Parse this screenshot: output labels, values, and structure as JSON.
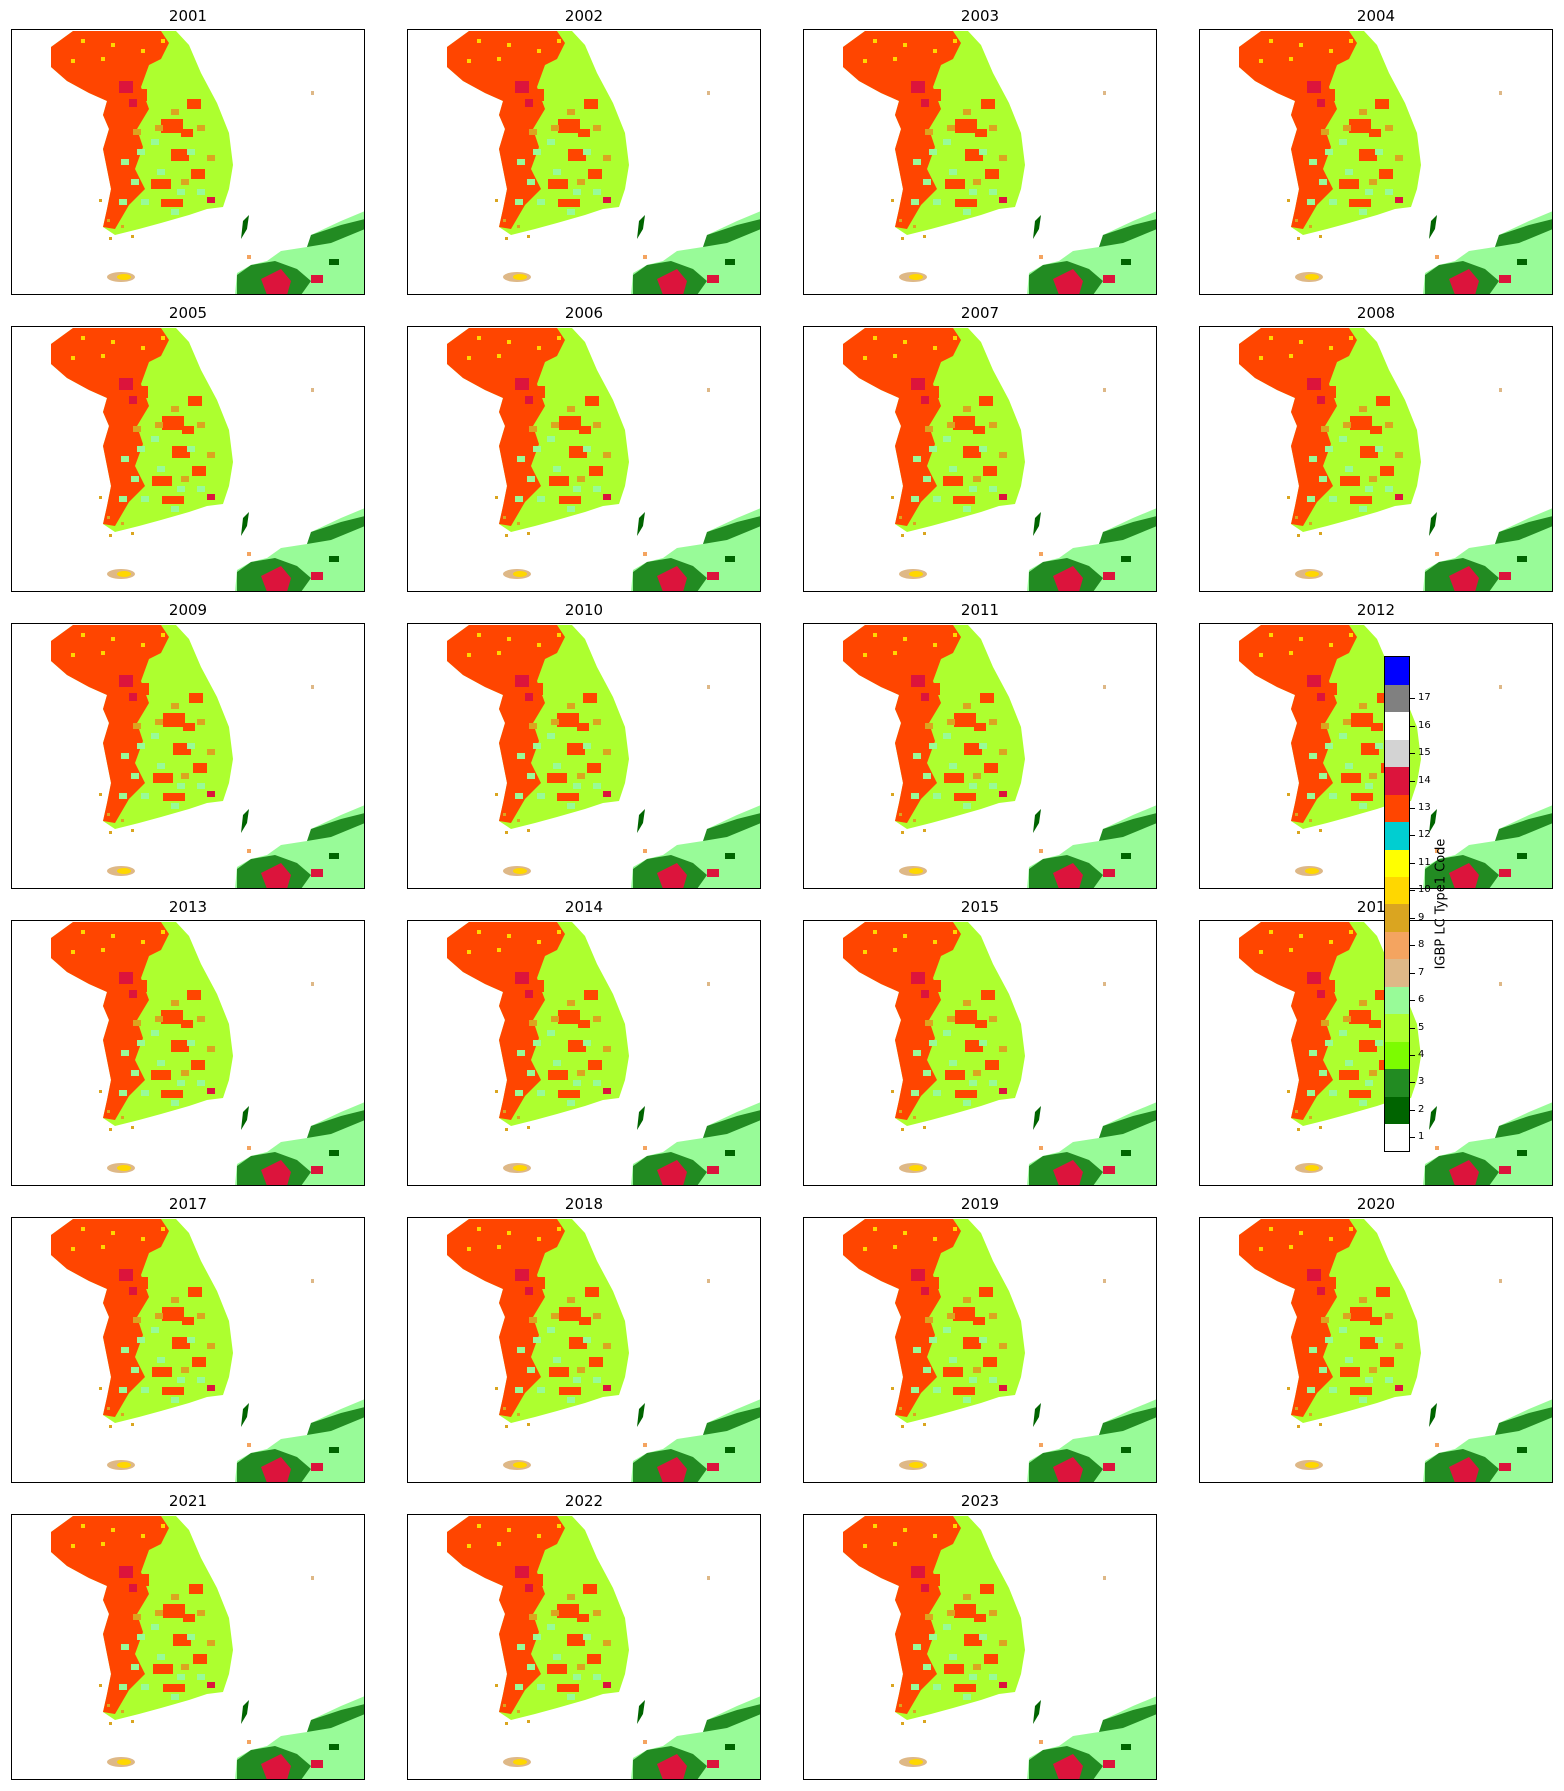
{
  "figure": {
    "panels": [
      {
        "year": "2001"
      },
      {
        "year": "2002"
      },
      {
        "year": "2003"
      },
      {
        "year": "2004"
      },
      {
        "year": "2005"
      },
      {
        "year": "2006"
      },
      {
        "year": "2007"
      },
      {
        "year": "2008"
      },
      {
        "year": "2009"
      },
      {
        "year": "2010"
      },
      {
        "year": "2011"
      },
      {
        "year": "2012"
      },
      {
        "year": "2013"
      },
      {
        "year": "2014"
      },
      {
        "year": "2015"
      },
      {
        "year": "2016"
      },
      {
        "year": "2017"
      },
      {
        "year": "2018"
      },
      {
        "year": "2019"
      },
      {
        "year": "2020"
      },
      {
        "year": "2021"
      },
      {
        "year": "2022"
      },
      {
        "year": "2023"
      }
    ],
    "colorbar": {
      "label": "IGBP LC Type1 Code",
      "classes": [
        {
          "code": "1",
          "color": "#ffffff"
        },
        {
          "code": "2",
          "color": "#006400"
        },
        {
          "code": "3",
          "color": "#228b22"
        },
        {
          "code": "4",
          "color": "#7cfc00"
        },
        {
          "code": "5",
          "color": "#adff2f"
        },
        {
          "code": "6",
          "color": "#98fb98"
        },
        {
          "code": "7",
          "color": "#deb887"
        },
        {
          "code": "8",
          "color": "#f4a460"
        },
        {
          "code": "9",
          "color": "#daa520"
        },
        {
          "code": "10",
          "color": "#ffd700"
        },
        {
          "code": "11",
          "color": "#ffff00"
        },
        {
          "code": "12",
          "color": "#00ced1"
        },
        {
          "code": "13",
          "color": "#ff4500"
        },
        {
          "code": "14",
          "color": "#dc143c"
        },
        {
          "code": "15",
          "color": "#d3d3d3"
        },
        {
          "code": "16",
          "color": "#ffffff"
        },
        {
          "code": "17",
          "color": "#808080"
        },
        {
          "code": "",
          "color": "#0000ff"
        }
      ]
    }
  }
}
